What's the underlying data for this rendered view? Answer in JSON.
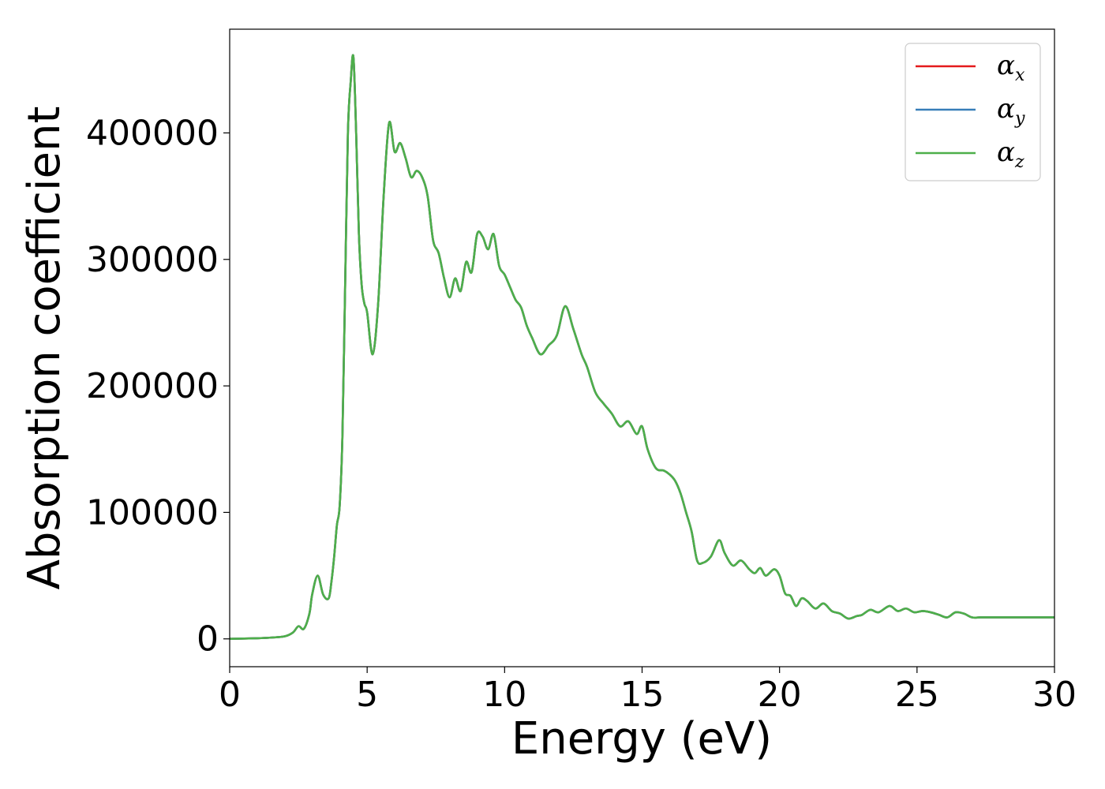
{
  "chart_data": {
    "type": "line",
    "xlabel": "Energy (eV)",
    "ylabel": "Absorption coefficient",
    "xlim": [
      0,
      30
    ],
    "ylim": [
      -22000,
      482000
    ],
    "xticks": [
      0,
      5,
      10,
      15,
      20,
      25,
      30
    ],
    "yticks": [
      0,
      100000,
      200000,
      300000,
      400000
    ],
    "grid": false,
    "legend": {
      "position": "top-right"
    },
    "x": [
      0,
      1,
      1.5,
      2,
      2.3,
      2.5,
      2.7,
      2.9,
      3.0,
      3.2,
      3.4,
      3.6,
      3.7,
      3.8,
      3.9,
      4.0,
      4.1,
      4.2,
      4.3,
      4.4,
      4.5,
      4.6,
      4.7,
      4.8,
      4.9,
      5.0,
      5.2,
      5.4,
      5.6,
      5.8,
      6.0,
      6.2,
      6.4,
      6.6,
      6.8,
      7.0,
      7.2,
      7.4,
      7.6,
      7.8,
      8.0,
      8.2,
      8.4,
      8.6,
      8.8,
      9.0,
      9.2,
      9.4,
      9.6,
      9.8,
      10.0,
      10.2,
      10.4,
      10.6,
      10.8,
      11.0,
      11.3,
      11.6,
      11.9,
      12.2,
      12.5,
      12.8,
      13.0,
      13.3,
      13.6,
      13.9,
      14.2,
      14.5,
      14.8,
      15.0,
      15.2,
      15.5,
      15.8,
      16.0,
      16.2,
      16.4,
      16.6,
      16.8,
      17.0,
      17.2,
      17.5,
      17.8,
      18.0,
      18.3,
      18.6,
      18.9,
      19.1,
      19.3,
      19.5,
      19.8,
      20.0,
      20.2,
      20.4,
      20.6,
      20.8,
      21.0,
      21.3,
      21.6,
      21.9,
      22.2,
      22.5,
      22.8,
      23.0,
      23.3,
      23.6,
      24.0,
      24.3,
      24.6,
      24.9,
      25.2,
      25.5,
      25.8,
      26.1,
      26.4,
      26.7,
      27.0,
      27.3,
      27.6,
      27.9,
      28.2,
      28.5,
      28.8,
      29.1,
      29.4,
      29.7,
      30
    ],
    "series": [
      {
        "name": "α_x",
        "name_base": "α",
        "name_sub": "x",
        "color": "#e41a1c",
        "values": [
          0,
          500,
          1000,
          2000,
          5000,
          10000,
          8000,
          20000,
          35000,
          50000,
          35000,
          32000,
          45000,
          65000,
          90000,
          105000,
          160000,
          280000,
          400000,
          440000,
          460000,
          400000,
          320000,
          280000,
          265000,
          258000,
          225000,
          265000,
          350000,
          408000,
          385000,
          392000,
          380000,
          365000,
          370000,
          365000,
          350000,
          315000,
          305000,
          285000,
          270000,
          285000,
          275000,
          298000,
          290000,
          320000,
          318000,
          308000,
          320000,
          295000,
          288000,
          278000,
          268000,
          262000,
          248000,
          238000,
          225000,
          232000,
          240000,
          263000,
          245000,
          225000,
          215000,
          195000,
          186000,
          178000,
          168000,
          172000,
          162000,
          168000,
          150000,
          135000,
          133000,
          130000,
          125000,
          115000,
          100000,
          85000,
          62000,
          60000,
          65000,
          78000,
          68000,
          58000,
          62000,
          55000,
          52000,
          56000,
          50000,
          55000,
          50000,
          36000,
          34000,
          26000,
          32000,
          30000,
          24000,
          28000,
          22000,
          20000,
          16000,
          18000,
          19000,
          23000,
          21000,
          26000,
          22000,
          24000,
          21000,
          22000,
          21000,
          19000,
          17000,
          21000,
          20000,
          17000,
          17000,
          17000,
          17000,
          17000,
          17000,
          17000,
          17000,
          17000,
          17000,
          17000
        ]
      },
      {
        "name": "α_y",
        "name_base": "α",
        "name_sub": "y",
        "color": "#377eb8",
        "same_as": 0
      },
      {
        "name": "α_z",
        "name_base": "α",
        "name_sub": "z",
        "color": "#4daf4a",
        "same_as": 0
      }
    ]
  }
}
